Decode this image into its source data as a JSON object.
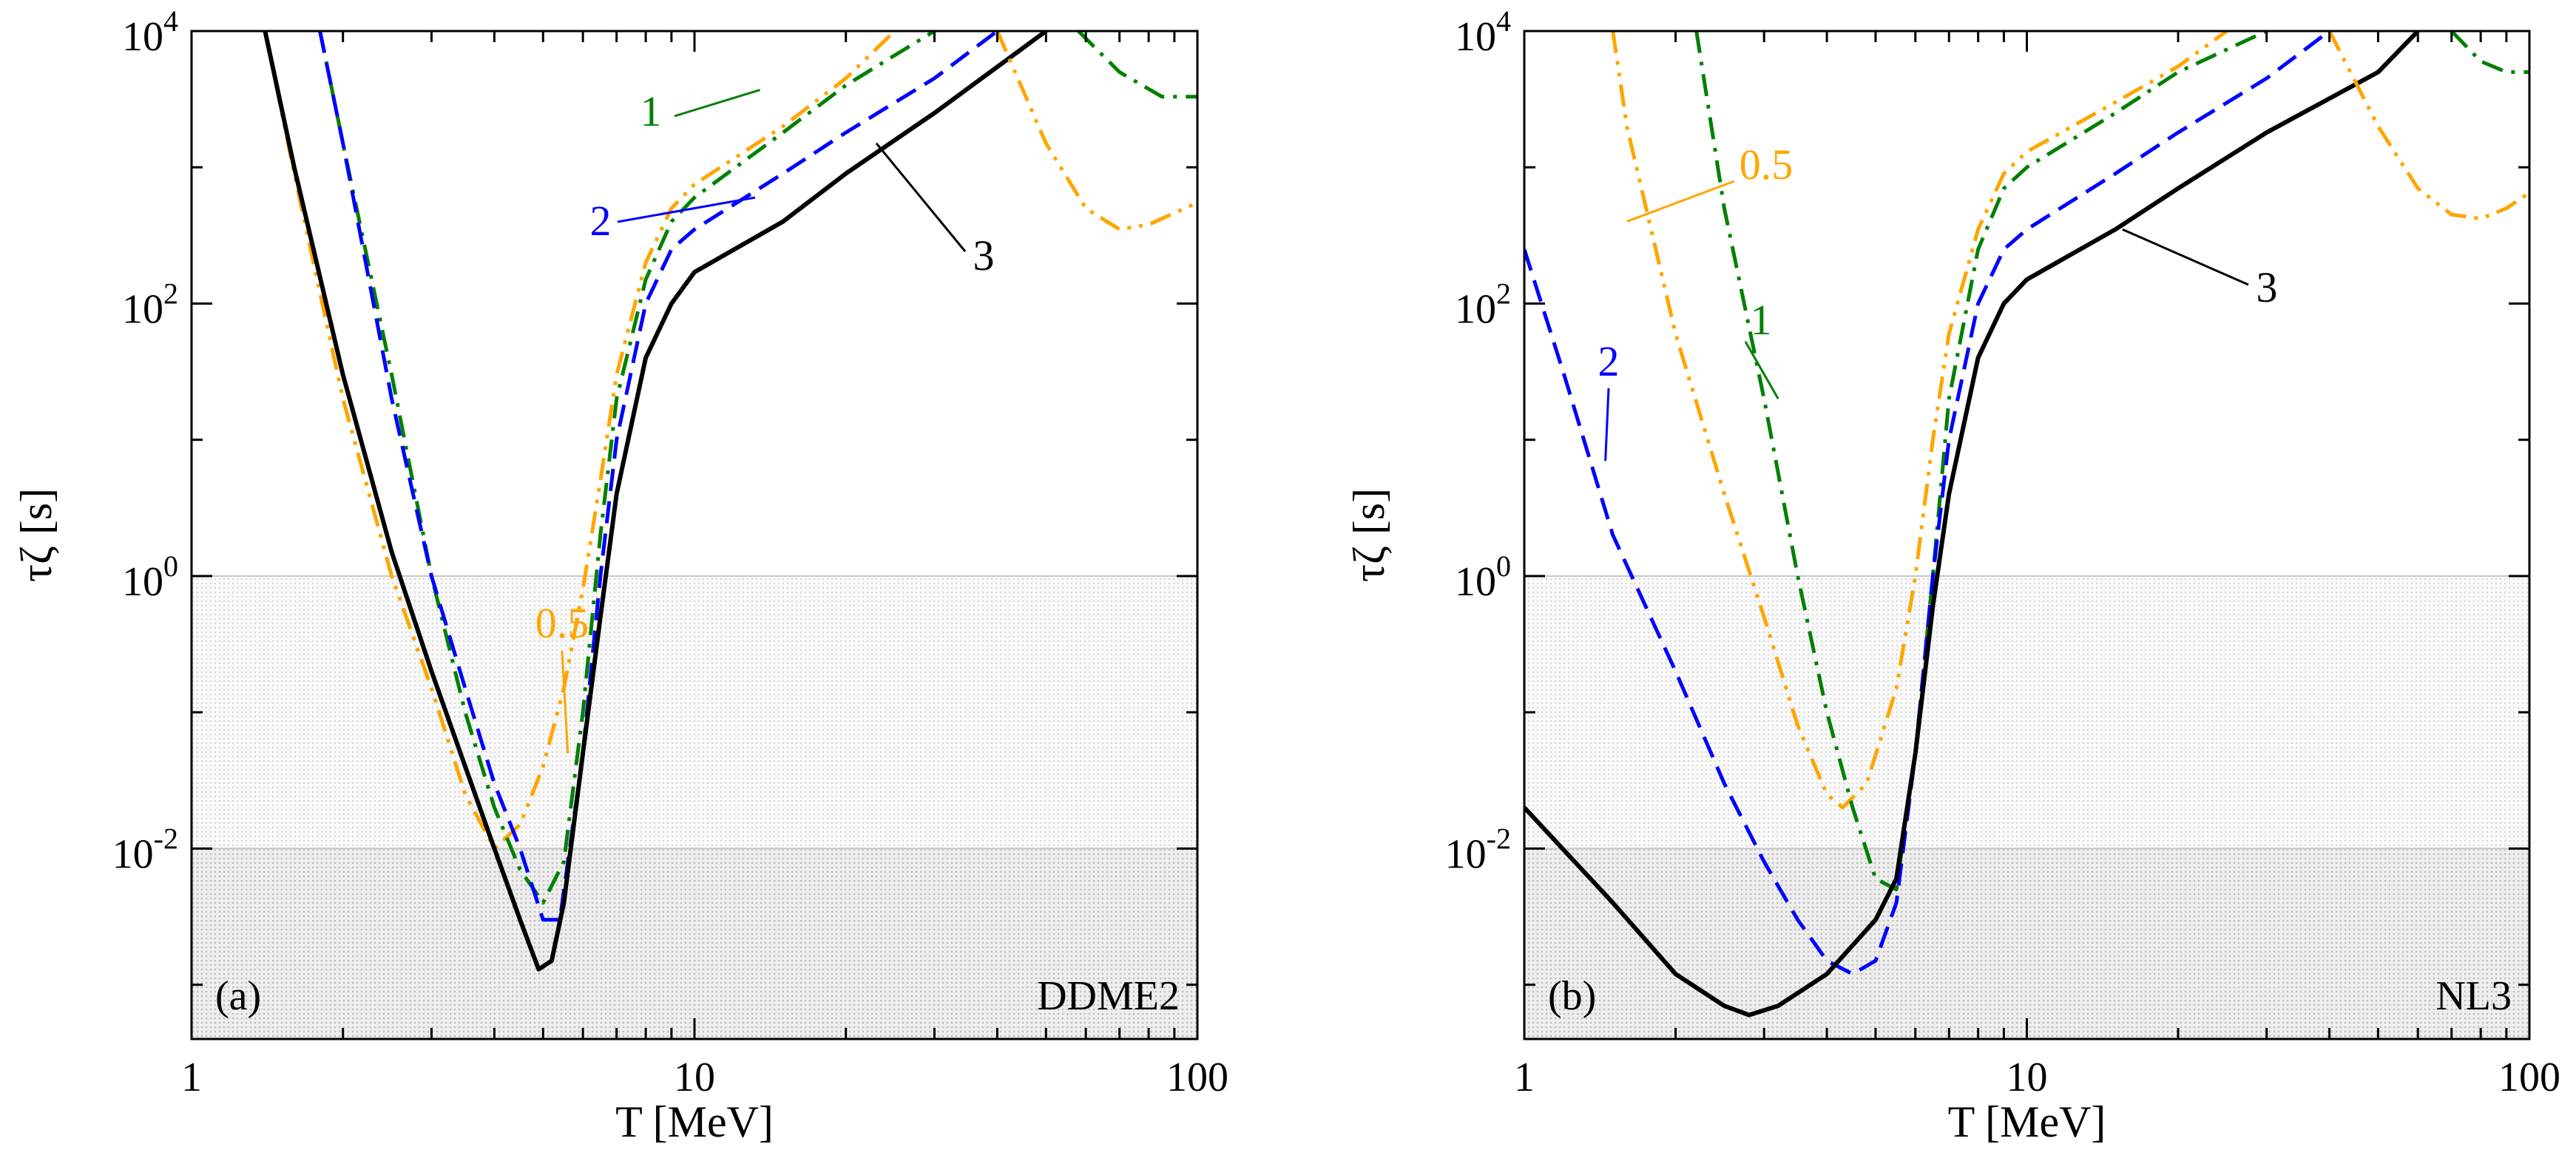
{
  "chart_data": [
    {
      "type": "line",
      "panel_label": "(a)",
      "model": "DDME2",
      "xlabel": "T [MeV]",
      "ylabel": "τζ [s]",
      "xscale": "log",
      "yscale": "log",
      "xlim": [
        1,
        100
      ],
      "ylim": [
        0.0004,
        10000
      ],
      "x_ticks": [
        "1",
        "10",
        "100"
      ],
      "y_ticks": [
        {
          "base": "10",
          "exp": "4"
        },
        {
          "base": "10",
          "exp": "2"
        },
        {
          "base": "10",
          "exp": "0"
        },
        {
          "base": "10",
          "exp": "-2"
        }
      ],
      "shaded_bands": [
        {
          "y": [
            0.01,
            1
          ],
          "shade": "light"
        },
        {
          "y": [
            0.0004,
            0.01
          ],
          "shade": "dark"
        }
      ],
      "series": [
        {
          "label": "0.5",
          "color": "#ffa500",
          "dash": "dashdotdot",
          "points": [
            [
              1.4,
              10000
            ],
            [
              1.6,
              900
            ],
            [
              2.0,
              20
            ],
            [
              2.5,
              1.0
            ],
            [
              3.0,
              0.15
            ],
            [
              3.5,
              0.025
            ],
            [
              4.0,
              0.01
            ],
            [
              4.5,
              0.015
            ],
            [
              5.0,
              0.04
            ],
            [
              5.5,
              0.15
            ],
            [
              6.0,
              0.8
            ],
            [
              6.5,
              5
            ],
            [
              7.0,
              30
            ],
            [
              8.0,
              200
            ],
            [
              9.0,
              500
            ],
            [
              10,
              750
            ],
            [
              15,
              2000
            ],
            [
              20,
              4500
            ],
            [
              25,
              10000
            ]
          ]
        },
        {
          "label": "1",
          "color": "#008000",
          "dash": "dashdot",
          "points": [
            [
              1.8,
              10000
            ],
            [
              2.0,
              1500
            ],
            [
              2.5,
              30
            ],
            [
              3.0,
              1.0
            ],
            [
              3.5,
              0.1
            ],
            [
              4.0,
              0.02
            ],
            [
              4.5,
              0.007
            ],
            [
              5.0,
              0.004
            ],
            [
              5.5,
              0.008
            ],
            [
              6.0,
              0.1
            ],
            [
              6.5,
              2
            ],
            [
              7.0,
              20
            ],
            [
              8.0,
              150
            ],
            [
              9.0,
              400
            ],
            [
              10,
              600
            ],
            [
              15,
              1800
            ],
            [
              20,
              4000
            ],
            [
              30,
              10000
            ]
          ]
        },
        {
          "label": "2",
          "color": "#0000ff",
          "dash": "dashed",
          "points": [
            [
              1.8,
              10000
            ],
            [
              2.0,
              1500
            ],
            [
              2.5,
              20
            ],
            [
              3.0,
              1.0
            ],
            [
              3.5,
              0.15
            ],
            [
              4.0,
              0.03
            ],
            [
              4.5,
              0.01
            ],
            [
              5.0,
              0.003
            ],
            [
              5.4,
              0.003
            ],
            [
              6.0,
              0.05
            ],
            [
              6.5,
              1
            ],
            [
              7.0,
              10
            ],
            [
              8.0,
              100
            ],
            [
              9.0,
              250
            ],
            [
              10,
              350
            ],
            [
              15,
              900
            ],
            [
              20,
              1800
            ],
            [
              30,
              4500
            ],
            [
              40,
              10000
            ]
          ]
        },
        {
          "label": "3",
          "color": "#000000",
          "dash": "solid",
          "points": [
            [
              1.4,
              10000
            ],
            [
              1.6,
              1000
            ],
            [
              2.0,
              30
            ],
            [
              2.5,
              1.5
            ],
            [
              3.0,
              0.2
            ],
            [
              3.5,
              0.04
            ],
            [
              4.0,
              0.01
            ],
            [
              4.5,
              0.003
            ],
            [
              4.9,
              0.0013
            ],
            [
              5.2,
              0.0015
            ],
            [
              5.5,
              0.004
            ],
            [
              6.0,
              0.05
            ],
            [
              6.5,
              0.5
            ],
            [
              7.0,
              4
            ],
            [
              8.0,
              40
            ],
            [
              9.0,
              100
            ],
            [
              10,
              170
            ],
            [
              15,
              400
            ],
            [
              20,
              900
            ],
            [
              30,
              2500
            ],
            [
              50,
              10000
            ]
          ]
        }
      ],
      "high_t_segments": [
        {
          "label": "0.5",
          "color": "#ffa500",
          "dash": "dashdotdot",
          "points": [
            [
              40,
              10000
            ],
            [
              50,
              1500
            ],
            [
              60,
              500
            ],
            [
              70,
              350
            ],
            [
              80,
              380
            ],
            [
              100,
              550
            ]
          ]
        },
        {
          "label": "1",
          "color": "#008000",
          "dash": "dashdot",
          "points": [
            [
              58,
              10000
            ],
            [
              70,
              5000
            ],
            [
              85,
              3300
            ],
            [
              100,
              3300
            ]
          ]
        }
      ],
      "annotations": [
        {
          "text": "1",
          "series": "1"
        },
        {
          "text": "2",
          "series": "2"
        },
        {
          "text": "3",
          "series": "3"
        },
        {
          "text": "0.5",
          "series": "0.5"
        }
      ]
    },
    {
      "type": "line",
      "panel_label": "(b)",
      "model": "NL3",
      "xlabel": "T [MeV]",
      "ylabel": "τζ [s]",
      "xscale": "log",
      "yscale": "log",
      "xlim": [
        1,
        100
      ],
      "ylim": [
        0.0004,
        10000
      ],
      "x_ticks": [
        "1",
        "10",
        "100"
      ],
      "y_ticks": [
        {
          "base": "10",
          "exp": "4"
        },
        {
          "base": "10",
          "exp": "2"
        },
        {
          "base": "10",
          "exp": "0"
        },
        {
          "base": "10",
          "exp": "-2"
        }
      ],
      "shaded_bands": [
        {
          "y": [
            0.01,
            1
          ],
          "shade": "light"
        },
        {
          "y": [
            0.0004,
            0.01
          ],
          "shade": "dark"
        }
      ],
      "series": [
        {
          "label": "0.5",
          "color": "#ffa500",
          "dash": "dashdotdot",
          "points": [
            [
              1.5,
              10000
            ],
            [
              1.6,
              2000
            ],
            [
              2.0,
              60
            ],
            [
              2.5,
              4
            ],
            [
              3.0,
              0.5
            ],
            [
              3.5,
              0.08
            ],
            [
              4.0,
              0.025
            ],
            [
              4.3,
              0.02
            ],
            [
              4.8,
              0.03
            ],
            [
              5.5,
              0.15
            ],
            [
              6.0,
              1
            ],
            [
              6.5,
              10
            ],
            [
              7.0,
              60
            ],
            [
              8.0,
              350
            ],
            [
              9.0,
              900
            ],
            [
              10,
              1300
            ],
            [
              15,
              3000
            ],
            [
              20,
              5500
            ],
            [
              25,
              10000
            ]
          ]
        },
        {
          "label": "1",
          "color": "#008000",
          "dash": "dashdot",
          "points": [
            [
              2.2,
              10000
            ],
            [
              2.5,
              500
            ],
            [
              3.0,
              20
            ],
            [
              3.5,
              1.0
            ],
            [
              4.0,
              0.1
            ],
            [
              4.5,
              0.02
            ],
            [
              5.0,
              0.006
            ],
            [
              5.5,
              0.005
            ],
            [
              6.0,
              0.05
            ],
            [
              6.5,
              1
            ],
            [
              7.0,
              20
            ],
            [
              8.0,
              250
            ],
            [
              9.0,
              700
            ],
            [
              10,
              1000
            ],
            [
              15,
              2500
            ],
            [
              20,
              5000
            ],
            [
              30,
              10000
            ]
          ]
        },
        {
          "label": "2",
          "color": "#0000ff",
          "dash": "dashed",
          "points": [
            [
              1.0,
              250
            ],
            [
              1.2,
              30
            ],
            [
              1.5,
              2
            ],
            [
              2.0,
              0.2
            ],
            [
              2.5,
              0.03
            ],
            [
              3.0,
              0.008
            ],
            [
              3.5,
              0.003
            ],
            [
              4.0,
              0.0015
            ],
            [
              4.5,
              0.0012
            ],
            [
              5.0,
              0.0015
            ],
            [
              5.5,
              0.004
            ],
            [
              6.0,
              0.05
            ],
            [
              6.5,
              1
            ],
            [
              7.0,
              10
            ],
            [
              8.0,
              100
            ],
            [
              9.0,
              250
            ],
            [
              10,
              350
            ],
            [
              15,
              900
            ],
            [
              20,
              1800
            ],
            [
              30,
              4500
            ],
            [
              40,
              10000
            ]
          ]
        },
        {
          "label": "3",
          "color": "#000000",
          "dash": "solid",
          "points": [
            [
              1.0,
              0.02
            ],
            [
              1.5,
              0.004
            ],
            [
              2.0,
              0.0012
            ],
            [
              2.5,
              0.0007
            ],
            [
              2.8,
              0.0006
            ],
            [
              3.2,
              0.0007
            ],
            [
              4.0,
              0.0012
            ],
            [
              5.0,
              0.003
            ],
            [
              5.5,
              0.006
            ],
            [
              6.0,
              0.05
            ],
            [
              6.5,
              0.6
            ],
            [
              7.0,
              4
            ],
            [
              8.0,
              40
            ],
            [
              9.0,
              100
            ],
            [
              10,
              150
            ],
            [
              15,
              350
            ],
            [
              20,
              700
            ],
            [
              30,
              1800
            ],
            [
              50,
              5000
            ],
            [
              60,
              10000
            ]
          ]
        }
      ],
      "high_t_segments": [
        {
          "label": "0.5",
          "color": "#ffa500",
          "dash": "dashdotdot",
          "points": [
            [
              40,
              10000
            ],
            [
              50,
              2000
            ],
            [
              60,
              700
            ],
            [
              70,
              450
            ],
            [
              80,
              420
            ],
            [
              90,
              500
            ],
            [
              100,
              650
            ]
          ]
        },
        {
          "label": "1",
          "color": "#008000",
          "dash": "dashdot",
          "points": [
            [
              70,
              10000
            ],
            [
              80,
              6000
            ],
            [
              90,
              5000
            ],
            [
              100,
              5000
            ]
          ]
        }
      ],
      "annotations": [
        {
          "text": "0.5",
          "series": "0.5"
        },
        {
          "text": "1",
          "series": "1"
        },
        {
          "text": "2",
          "series": "2"
        },
        {
          "text": "3",
          "series": "3"
        }
      ]
    }
  ]
}
